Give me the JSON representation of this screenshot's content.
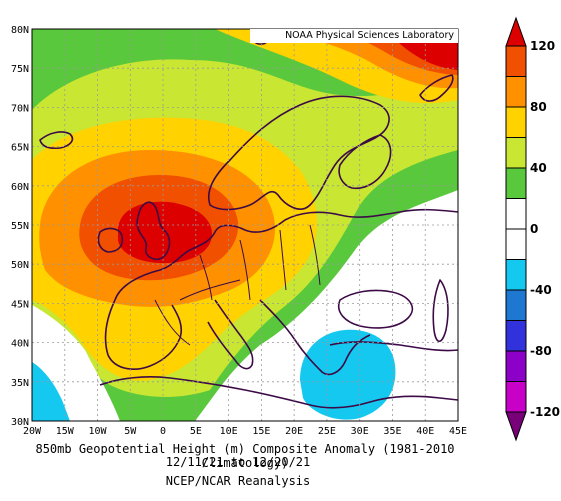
{
  "credit": "NOAA Physical Sciences Laboratory",
  "title_line1": "850mb Geopotential Height (m) Composite Anomaly (1981-2010 Climatology)",
  "title_line2": "12/11/21 to 12/20/21",
  "title_line3": "NCEP/NCAR Reanalysis",
  "lon_ticks": [
    "20W",
    "15W",
    "10W",
    "5W",
    "0",
    "5E",
    "10E",
    "15E",
    "20E",
    "25E",
    "30E",
    "35E",
    "40E",
    "45E"
  ],
  "lat_ticks": [
    "80N",
    "75N",
    "70N",
    "65N",
    "60N",
    "55N",
    "50N",
    "45N",
    "40N",
    "35N",
    "30N"
  ],
  "colorbar": {
    "labels": [
      "120",
      "80",
      "40",
      "0",
      "-40",
      "-80",
      "-120"
    ],
    "colors": [
      "#dc0000",
      "#f05000",
      "#ff9000",
      "#ffd200",
      "#c8e632",
      "#5ac83c",
      "#ffffff",
      "#ffffff",
      "#14c8f0",
      "#1e78d2",
      "#3232dc",
      "#8c00c8",
      "#c800c8",
      "#780078"
    ]
  },
  "map_colors": {
    "land_outline": "#3c0a46",
    "water": "#ffffff",
    "anomaly_gt_120": "#dc0000",
    "anomaly_100": "#f05000",
    "anomaly_80": "#ff9000",
    "anomaly_60": "#ffd200",
    "anomaly_40": "#c8e632",
    "anomaly_20": "#5ac83c",
    "anomaly_neg20": "#14c8f0"
  }
}
